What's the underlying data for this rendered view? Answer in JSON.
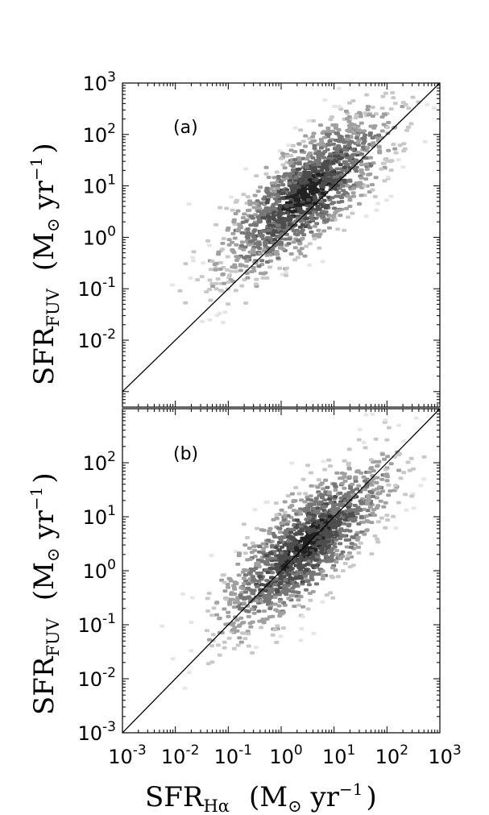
{
  "chart_data": [
    {
      "type": "heatmap",
      "panel_label": "(a)",
      "x_scale": "log",
      "y_scale": "log",
      "xlim": [
        0.001,
        1000
      ],
      "ylim": [
        0.0005,
        1000
      ],
      "y_ticks": [
        0.01,
        0.1,
        1,
        10,
        100,
        1000
      ],
      "y_tick_labels": [
        {
          "base": "10",
          "exp": "-2"
        },
        {
          "base": "10",
          "exp": "-1"
        },
        {
          "base": "10",
          "exp": "0"
        },
        {
          "base": "10",
          "exp": "1"
        },
        {
          "base": "10",
          "exp": "2"
        },
        {
          "base": "10",
          "exp": "3"
        }
      ],
      "y_label": {
        "main": "SFR",
        "sub": "FUV",
        "unit_pre": "(M",
        "unit_sun": "⊙",
        "unit_mid": " yr",
        "unit_sup": "−1",
        "unit_post": ")"
      },
      "reference_line": {
        "type": "one-to-one",
        "color": "#000000"
      },
      "density_peak": {
        "x": 3,
        "y": 7
      },
      "colormap": [
        "#e6e6e6",
        "#c8c8c8",
        "#a0a0a0",
        "#777777",
        "#4d4d4d",
        "#222222"
      ]
    },
    {
      "type": "heatmap",
      "panel_label": "(b)",
      "x_scale": "log",
      "y_scale": "log",
      "xlim": [
        0.001,
        1000
      ],
      "ylim": [
        0.001,
        1000
      ],
      "y_ticks": [
        0.001,
        0.01,
        0.1,
        1,
        10,
        100
      ],
      "y_tick_labels": [
        {
          "base": "10",
          "exp": "-3"
        },
        {
          "base": "10",
          "exp": "-2"
        },
        {
          "base": "10",
          "exp": "-1"
        },
        {
          "base": "10",
          "exp": "0"
        },
        {
          "base": "10",
          "exp": "1"
        },
        {
          "base": "10",
          "exp": "2"
        }
      ],
      "x_ticks": [
        0.001,
        0.01,
        0.1,
        1,
        10,
        100,
        1000
      ],
      "x_tick_labels": [
        {
          "base": "10",
          "exp": "-3"
        },
        {
          "base": "10",
          "exp": "-2"
        },
        {
          "base": "10",
          "exp": "-1"
        },
        {
          "base": "10",
          "exp": "0"
        },
        {
          "base": "10",
          "exp": "1"
        },
        {
          "base": "10",
          "exp": "2"
        },
        {
          "base": "10",
          "exp": "3"
        }
      ],
      "x_label": {
        "main": "SFR",
        "sub": "Hα",
        "unit_pre": "(M",
        "unit_sun": "⊙",
        "unit_mid": " yr",
        "unit_sup": "−1",
        "unit_post": ")"
      },
      "y_label": {
        "main": "SFR",
        "sub": "FUV",
        "unit_pre": "(M",
        "unit_sun": "⊙",
        "unit_mid": " yr",
        "unit_sup": "−1",
        "unit_post": ")"
      },
      "reference_line": {
        "type": "one-to-one",
        "color": "#000000"
      },
      "density_peak": {
        "x": 3,
        "y": 3
      },
      "colormap": [
        "#e6e6e6",
        "#c8c8c8",
        "#a0a0a0",
        "#777777",
        "#4d4d4d",
        "#222222"
      ]
    }
  ]
}
